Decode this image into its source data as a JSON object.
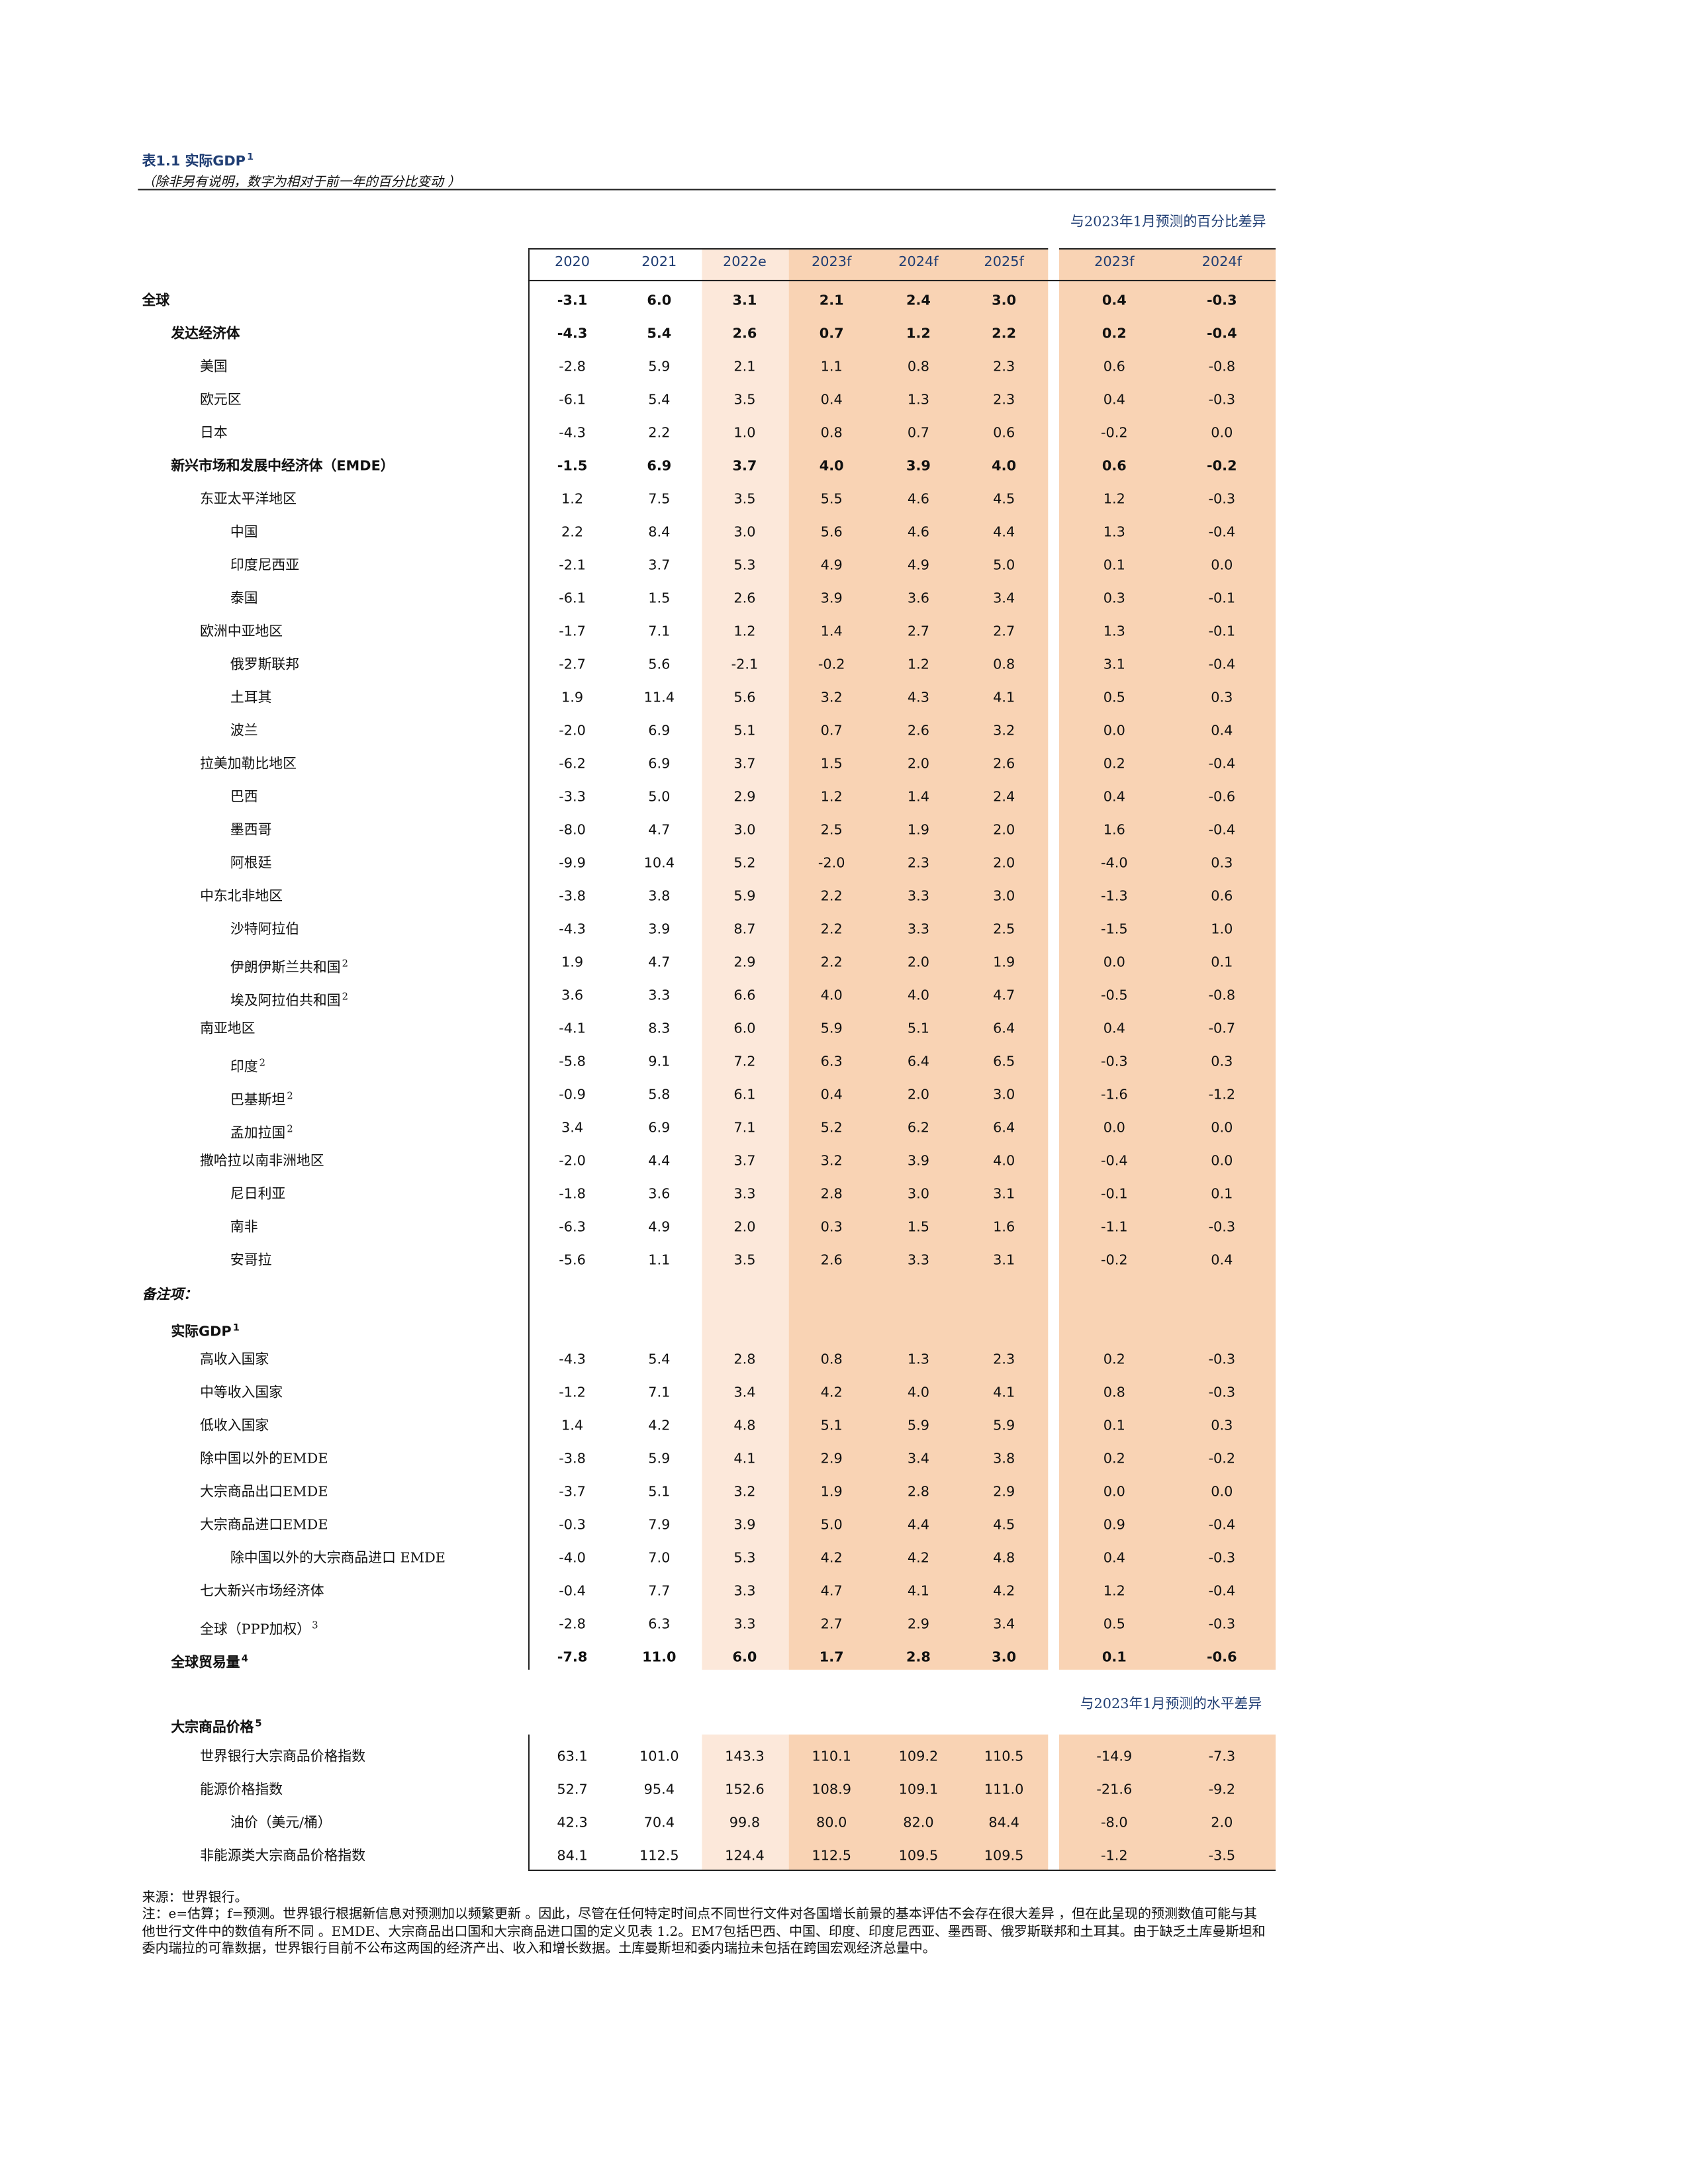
{
  "header": {
    "title": "表1.1 实际GDP",
    "title_note": "1",
    "subtitle": "（除非另有说明，数字为相对于前一年的百分比变动 ）"
  },
  "table": {
    "group_note": "与2023年1月预测的百分比差异",
    "columns": [
      "2020",
      "2021",
      "2022e",
      "2023f",
      "2024f",
      "2025f",
      "2023f",
      "2024f"
    ],
    "rows": [
      {
        "label": "全球",
        "indent": 0,
        "bold": true,
        "values": [
          "-3.1",
          "6.0",
          "3.1",
          "2.1",
          "2.4",
          "3.0",
          "0.4",
          "-0.3"
        ]
      },
      {
        "label": "发达经济体",
        "indent": 1,
        "bold": true,
        "values": [
          "-4.3",
          "5.4",
          "2.6",
          "0.7",
          "1.2",
          "2.2",
          "0.2",
          "-0.4"
        ]
      },
      {
        "label": "美国",
        "indent": 2,
        "values": [
          "-2.8",
          "5.9",
          "2.1",
          "1.1",
          "0.8",
          "2.3",
          "0.6",
          "-0.8"
        ]
      },
      {
        "label": "欧元区",
        "indent": 2,
        "values": [
          "-6.1",
          "5.4",
          "3.5",
          "0.4",
          "1.3",
          "2.3",
          "0.4",
          "-0.3"
        ]
      },
      {
        "label": "日本",
        "indent": 2,
        "values": [
          "-4.3",
          "2.2",
          "1.0",
          "0.8",
          "0.7",
          "0.6",
          "-0.2",
          "0.0"
        ]
      },
      {
        "label": "新兴市场和发展中经济体（EMDE）",
        "indent": 1,
        "bold": true,
        "values": [
          "-1.5",
          "6.9",
          "3.7",
          "4.0",
          "3.9",
          "4.0",
          "0.6",
          "-0.2"
        ]
      },
      {
        "label": "东亚太平洋地区",
        "indent": 2,
        "values": [
          "1.2",
          "7.5",
          "3.5",
          "5.5",
          "4.6",
          "4.5",
          "1.2",
          "-0.3"
        ]
      },
      {
        "label": "中国",
        "indent": 3,
        "values": [
          "2.2",
          "8.4",
          "3.0",
          "5.6",
          "4.6",
          "4.4",
          "1.3",
          "-0.4"
        ]
      },
      {
        "label": "印度尼西亚",
        "indent": 3,
        "values": [
          "-2.1",
          "3.7",
          "5.3",
          "4.9",
          "4.9",
          "5.0",
          "0.1",
          "0.0"
        ]
      },
      {
        "label": "泰国",
        "indent": 3,
        "values": [
          "-6.1",
          "1.5",
          "2.6",
          "3.9",
          "3.6",
          "3.4",
          "0.3",
          "-0.1"
        ]
      },
      {
        "label": "欧洲中亚地区",
        "indent": 2,
        "values": [
          "-1.7",
          "7.1",
          "1.2",
          "1.4",
          "2.7",
          "2.7",
          "1.3",
          "-0.1"
        ]
      },
      {
        "label": "俄罗斯联邦",
        "indent": 3,
        "values": [
          "-2.7",
          "5.6",
          "-2.1",
          "-0.2",
          "1.2",
          "0.8",
          "3.1",
          "-0.4"
        ]
      },
      {
        "label": "土耳其",
        "indent": 3,
        "values": [
          "1.9",
          "11.4",
          "5.6",
          "3.2",
          "4.3",
          "4.1",
          "0.5",
          "0.3"
        ]
      },
      {
        "label": "波兰",
        "indent": 3,
        "values": [
          "-2.0",
          "6.9",
          "5.1",
          "0.7",
          "2.6",
          "3.2",
          "0.0",
          "0.4"
        ]
      },
      {
        "label": "拉美加勒比地区",
        "indent": 2,
        "values": [
          "-6.2",
          "6.9",
          "3.7",
          "1.5",
          "2.0",
          "2.6",
          "0.2",
          "-0.4"
        ]
      },
      {
        "label": "巴西",
        "indent": 3,
        "values": [
          "-3.3",
          "5.0",
          "2.9",
          "1.2",
          "1.4",
          "2.4",
          "0.4",
          "-0.6"
        ]
      },
      {
        "label": "墨西哥",
        "indent": 3,
        "values": [
          "-8.0",
          "4.7",
          "3.0",
          "2.5",
          "1.9",
          "2.0",
          "1.6",
          "-0.4"
        ]
      },
      {
        "label": "阿根廷",
        "indent": 3,
        "values": [
          "-9.9",
          "10.4",
          "5.2",
          "-2.0",
          "2.3",
          "2.0",
          "-4.0",
          "0.3"
        ]
      },
      {
        "label": "中东北非地区",
        "indent": 2,
        "values": [
          "-3.8",
          "3.8",
          "5.9",
          "2.2",
          "3.3",
          "3.0",
          "-1.3",
          "0.6"
        ]
      },
      {
        "label": "沙特阿拉伯",
        "indent": 3,
        "values": [
          "-4.3",
          "3.9",
          "8.7",
          "2.2",
          "3.3",
          "2.5",
          "-1.5",
          "1.0"
        ]
      },
      {
        "label": "伊朗伊斯兰共和国",
        "note": "2",
        "indent": 3,
        "values": [
          "1.9",
          "4.7",
          "2.9",
          "2.2",
          "2.0",
          "1.9",
          "0.0",
          "0.1"
        ]
      },
      {
        "label": "埃及阿拉伯共和国",
        "note": "2",
        "indent": 3,
        "values": [
          "3.6",
          "3.3",
          "6.6",
          "4.0",
          "4.0",
          "4.7",
          "-0.5",
          "-0.8"
        ]
      },
      {
        "label": "南亚地区",
        "indent": 2,
        "values": [
          "-4.1",
          "8.3",
          "6.0",
          "5.9",
          "5.1",
          "6.4",
          "0.4",
          "-0.7"
        ]
      },
      {
        "label": "印度",
        "note": "2",
        "indent": 3,
        "values": [
          "-5.8",
          "9.1",
          "7.2",
          "6.3",
          "6.4",
          "6.5",
          "-0.3",
          "0.3"
        ]
      },
      {
        "label": "巴基斯坦",
        "note": "2",
        "indent": 3,
        "values": [
          "-0.9",
          "5.8",
          "6.1",
          "0.4",
          "2.0",
          "3.0",
          "-1.6",
          "-1.2"
        ]
      },
      {
        "label": "孟加拉国",
        "note": "2",
        "indent": 3,
        "values": [
          "3.4",
          "6.9",
          "7.1",
          "5.2",
          "6.2",
          "6.4",
          "0.0",
          "0.0"
        ]
      },
      {
        "label": "撒哈拉以南非洲地区",
        "indent": 2,
        "values": [
          "-2.0",
          "4.4",
          "3.7",
          "3.2",
          "3.9",
          "4.0",
          "-0.4",
          "0.0"
        ]
      },
      {
        "label": "尼日利亚",
        "indent": 3,
        "values": [
          "-1.8",
          "3.6",
          "3.3",
          "2.8",
          "3.0",
          "3.1",
          "-0.1",
          "0.1"
        ]
      },
      {
        "label": "南非",
        "indent": 3,
        "values": [
          "-6.3",
          "4.9",
          "2.0",
          "0.3",
          "1.5",
          "1.6",
          "-1.1",
          "-0.3"
        ]
      },
      {
        "label": "安哥拉",
        "indent": 3,
        "values": [
          "-5.6",
          "1.1",
          "3.5",
          "2.6",
          "3.3",
          "3.1",
          "-0.2",
          "0.4"
        ]
      }
    ],
    "memo": {
      "label": "备注项：",
      "heading": {
        "label": "实际GDP",
        "note": "1"
      },
      "rows": [
        {
          "label": "高收入国家",
          "indent": 2,
          "values": [
            "-4.3",
            "5.4",
            "2.8",
            "0.8",
            "1.3",
            "2.3",
            "0.2",
            "-0.3"
          ]
        },
        {
          "label": "中等收入国家",
          "indent": 2,
          "values": [
            "-1.2",
            "7.1",
            "3.4",
            "4.2",
            "4.0",
            "4.1",
            "0.8",
            "-0.3"
          ]
        },
        {
          "label": "低收入国家",
          "indent": 2,
          "values": [
            "1.4",
            "4.2",
            "4.8",
            "5.1",
            "5.9",
            "5.9",
            "0.1",
            "0.3"
          ]
        },
        {
          "label": "除中国以外的EMDE",
          "indent": 2,
          "values": [
            "-3.8",
            "5.9",
            "4.1",
            "2.9",
            "3.4",
            "3.8",
            "0.2",
            "-0.2"
          ]
        },
        {
          "label": "大宗商品出口EMDE",
          "indent": 2,
          "values": [
            "-3.7",
            "5.1",
            "3.2",
            "1.9",
            "2.8",
            "2.9",
            "0.0",
            "0.0"
          ]
        },
        {
          "label": "大宗商品进口EMDE",
          "indent": 2,
          "values": [
            "-0.3",
            "7.9",
            "3.9",
            "5.0",
            "4.4",
            "4.5",
            "0.9",
            "-0.4"
          ]
        },
        {
          "label": "除中国以外的大宗商品进口 EMDE",
          "indent": 3,
          "values": [
            "-4.0",
            "7.0",
            "5.3",
            "4.2",
            "4.2",
            "4.8",
            "0.4",
            "-0.3"
          ]
        },
        {
          "label": "七大新兴市场经济体",
          "indent": 2,
          "values": [
            "-0.4",
            "7.7",
            "3.3",
            "4.7",
            "4.1",
            "4.2",
            "1.2",
            "-0.4"
          ]
        },
        {
          "label": "全球（PPP加权）",
          "note": "3",
          "indent": 2,
          "values": [
            "-2.8",
            "6.3",
            "3.3",
            "2.7",
            "2.9",
            "3.4",
            "0.5",
            "-0.3"
          ]
        },
        {
          "label": "全球贸易量",
          "note": "4",
          "indent": 1,
          "bold": true,
          "values": [
            "-7.8",
            "11.0",
            "6.0",
            "1.7",
            "2.8",
            "3.0",
            "0.1",
            "-0.6"
          ]
        }
      ]
    },
    "commodities": {
      "group_note": "与2023年1月预测的水平差异",
      "heading": {
        "label": "大宗商品价格",
        "note": "5"
      },
      "rows": [
        {
          "label": "世界银行大宗商品价格指数",
          "indent": 2,
          "values": [
            "63.1",
            "101.0",
            "143.3",
            "110.1",
            "109.2",
            "110.5",
            "-14.9",
            "-7.3"
          ]
        },
        {
          "label": "能源价格指数",
          "indent": 2,
          "values": [
            "52.7",
            "95.4",
            "152.6",
            "108.9",
            "109.1",
            "111.0",
            "-21.6",
            "-9.2"
          ]
        },
        {
          "label": "油价（美元/桶）",
          "indent": 3,
          "values": [
            "42.3",
            "70.4",
            "99.8",
            "80.0",
            "82.0",
            "84.4",
            "-8.0",
            "2.0"
          ]
        },
        {
          "label": "非能源类大宗商品价格指数",
          "indent": 2,
          "values": [
            "84.1",
            "112.5",
            "124.4",
            "112.5",
            "109.5",
            "109.5",
            "-1.2",
            "-3.5"
          ]
        }
      ]
    }
  },
  "footer": {
    "source": "来源：世界银行。",
    "note": "注：e=估算；f=预测。世界银行根据新信息对预测加以频繁更新 。因此，尽管在任何特定时间点不同世行文件对各国增长前景的基本评估不会存在很大差异 ，但在此呈现的预测数值可能与其他世行文件中的数值有所不同 。EMDE、大宗商品出口国和大宗商品进口国的定义见表 1.2。EM7包括巴西、中国、印度、印度尼西亚、墨西哥、俄罗斯联邦和土耳其。由于缺乏土库曼斯坦和委内瑞拉的可靠数据，世界银行目前不公布这两国的经济产出、收入和增长数据。土库曼斯坦和委内瑞拉未包括在跨国宏观经济总量中。"
  }
}
